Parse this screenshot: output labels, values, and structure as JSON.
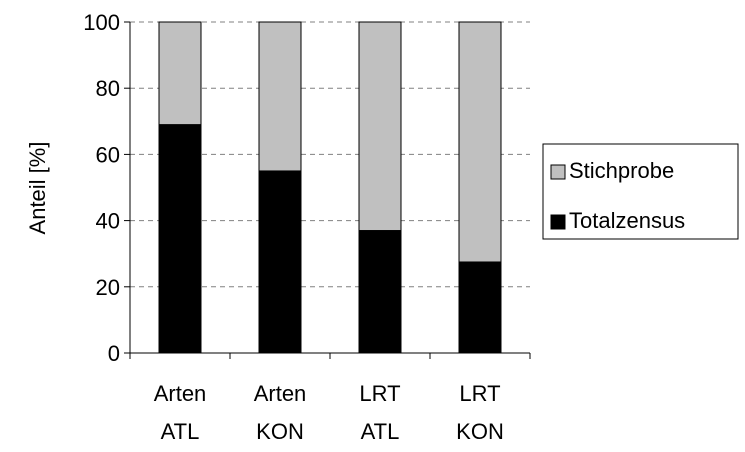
{
  "chart_data": {
    "type": "bar",
    "stacked": true,
    "categories": [
      [
        "Arten",
        "ATL"
      ],
      [
        "Arten",
        "KON"
      ],
      [
        "LRT",
        "ATL"
      ],
      [
        "LRT",
        "KON"
      ]
    ],
    "series": [
      {
        "name": "Totalzensus",
        "values": [
          69,
          55,
          37,
          27.5
        ],
        "color": "#000000"
      },
      {
        "name": "Stichprobe",
        "values": [
          31,
          45,
          63,
          72.5
        ],
        "color": "#c0c0c0"
      }
    ],
    "ylabel": "Anteil [%]",
    "xlabel": "",
    "ylim": [
      0,
      100
    ],
    "yticks": [
      0,
      20,
      40,
      60,
      80,
      100
    ],
    "grid": "horizontal dashed",
    "legend_position": "right",
    "legend_order": [
      "Stichprobe",
      "Totalzensus"
    ]
  }
}
